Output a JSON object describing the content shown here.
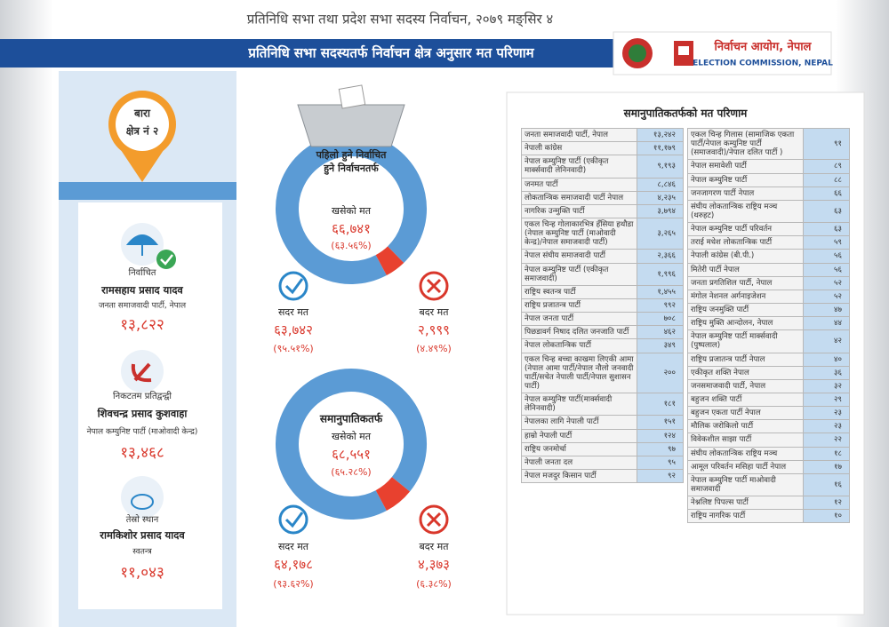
{
  "header": {
    "top_line": "प्रतिनिधि सभा तथा प्रदेश सभा सदस्य निर्वाचन, २०७९ मङ्सिर ४",
    "title": "प्रतिनिधि सभा सदस्यतर्फ निर्वाचन क्षेत्र अनुसार मत परिणाम",
    "logo_text": "निर्वाचन आयोग, नेपाल",
    "logo_subtext": "ELECTION COMMISSION, NEPAL"
  },
  "constituency": {
    "district": "बारा",
    "number": "क्षेत्र नं २"
  },
  "candidates": [
    {
      "status": "निर्वाचित",
      "name": "रामसहाय प्रसाद यादव",
      "party": "जनता समाजवादी पार्टी, नेपाल",
      "votes": "१३,८२२"
    },
    {
      "status": "निकटतम प्रतिद्वन्द्वी",
      "name": "शिवचन्द्र प्रसाद कुशवाहा",
      "party": "नेपाल कम्युनिष्ट पार्टी (माओवादी केन्द्र)",
      "votes": "१३,४६८"
    },
    {
      "status": "तेस्रो स्थान",
      "name": "रामकिशोर प्रसाद यादव",
      "party": "स्वतन्त्र",
      "votes": "११,०४३"
    }
  ],
  "fpp": {
    "heading_lines": [
      "पहिलो हुने निर्वाचित",
      "हुने निर्वाचनतर्फ"
    ],
    "cast_label": "खसेको मत",
    "cast_votes": "६६,७४१",
    "cast_percent": "(६३.५६%)",
    "valid_label": "सदर मत",
    "valid_votes": "६३,७४२",
    "valid_percent": "(९५.५१%)",
    "invalid_label": "बदर मत",
    "invalid_votes": "२,९९९",
    "invalid_percent": "(४.४९%)",
    "valid_share": 95.51,
    "invalid_share": 4.49
  },
  "pr": {
    "heading": "समानुपातिकतर्फ",
    "cast_label": "खसेको मत",
    "cast_votes": "६८,५५१",
    "cast_percent": "(६५.२८%)",
    "valid_label": "सदर मत",
    "valid_votes": "६४,१७८",
    "valid_percent": "(९३.६२%)",
    "invalid_label": "बदर मत",
    "invalid_votes": "४,३७३",
    "invalid_percent": "(६.३८%)",
    "valid_share": 93.62,
    "invalid_share": 6.38
  },
  "table": {
    "title": "समानुपातिकतर्फको मत परिणाम",
    "left": [
      [
        "जनता समाजवादी पार्टी, नेपाल",
        "१३,२४२"
      ],
      [
        "नेपाली कांग्रेस",
        "११,१७९"
      ],
      [
        "नेपाल कम्युनिष्ट पार्टी (एकीकृत मार्क्सवादी लेनिनवादी)",
        "९,१९३"
      ],
      [
        "जनमत पार्टी",
        "८,८४६"
      ],
      [
        "लोकतान्त्रिक समाजवादी पार्टी नेपाल",
        "४,२३५"
      ],
      [
        "नागरिक उन्मुक्ति पार्टी",
        "३,७९४"
      ],
      [
        "एकल चिन्ह गोलाकारभित्र हँसिया हथौडा (नेपाल कम्युनिष्ट पार्टी (माओवादी केन्द्र)/नेपाल समाजवादी पार्टी)",
        "३,२६५"
      ],
      [
        "नेपाल संघीय समाजवादी पार्टी",
        "२,३६६"
      ],
      [
        "नेपाल कम्युनिष्ट पार्टी (एकीकृत समाजवादी)",
        "१,९९६"
      ],
      [
        "राष्ट्रिय स्वतन्त्र पार्टी",
        "१,४५५"
      ],
      [
        "राष्ट्रिय प्रजातन्त्र पार्टी",
        "९९२"
      ],
      [
        "नेपाल जनता पार्टी",
        "७०८"
      ],
      [
        "पिछडावर्ग निषाद दलित जनजाति पार्टी",
        "४६२"
      ],
      [
        "नेपाल लोकतान्त्रिक पार्टी",
        "३४९"
      ],
      [
        "एकल चिन्ह बच्चा काखमा लिएकी आमा (नेपाल आमा पार्टी/नेपाल नौलो जनवादी पार्टी/सचेत नेपाली पार्टी/नेपाल सुशासन पार्टी)",
        "२००"
      ],
      [
        "नेपाल कम्युनिष्ट पार्टी(मार्क्सवादी लेनिनवादी)",
        "१८१"
      ],
      [
        "नेपालका लागि नेपाली पार्टी",
        "१५१"
      ],
      [
        "हाम्रो नेपाली पार्टी",
        "१२४"
      ],
      [
        "राष्ट्रिय जनमोर्चा",
        "९७"
      ],
      [
        "नेपाली जनता दल",
        "९५"
      ],
      [
        "नेपाल मजदुर किसान पार्टी",
        "९२"
      ]
    ],
    "right": [
      [
        "एकल चिन्ह गिलास (सामाजिक एकता पार्टी/नेपाल कम्युनिष्ट पार्टी (समाजवादी)/नेपाल दलित पार्टी )",
        "९१"
      ],
      [
        "नेपाल समावेशी पार्टी",
        "८९"
      ],
      [
        "नेपाल कम्युनिष्ट पार्टी",
        "८८"
      ],
      [
        "जनजागरण पार्टी नेपाल",
        "६६"
      ],
      [
        "संघीय लोकतान्त्रिक राष्ट्रिय मञ्च (थरुहट)",
        "६३"
      ],
      [
        "नेपाल कम्युनिष्ट पार्टी परिवर्तन",
        "६३"
      ],
      [
        "तराई मधेश लोकतान्त्रिक पार्टी",
        "५९"
      ],
      [
        "नेपाली कांग्रेस (बी.पी.)",
        "५६"
      ],
      [
        "मितेरी पार्टी नेपाल",
        "५६"
      ],
      [
        "जनता प्रगतिशिल पार्टी, नेपाल",
        "५२"
      ],
      [
        "मंगोल नेशनल अर्गनाइजेशन",
        "५२"
      ],
      [
        "राष्ट्रिय जनमुक्ति पार्टी",
        "४७"
      ],
      [
        "राष्ट्रिय मुक्ति आन्दोलन, नेपाल",
        "४४"
      ],
      [
        "नेपाल कम्युनिष्ट पार्टी मार्क्सवादी (पुष्पलाल)",
        "४२"
      ],
      [
        "राष्ट्रिय प्रजातन्त्र पार्टी नेपाल",
        "४०"
      ],
      [
        "एकीकृत शक्ति नेपाल",
        "३६"
      ],
      [
        "जनसमाजवादी पार्टी, नेपाल",
        "३२"
      ],
      [
        "बहुजन शक्ति पार्टी",
        "२९"
      ],
      [
        "बहुजन एकता पार्टी नेपाल",
        "२३"
      ],
      [
        "मौलिक जरोकिलो पार्टी",
        "२३"
      ],
      [
        "विवेकशील साझा पार्टी",
        "२२"
      ],
      [
        "संघीय लोकतान्त्रिक राष्ट्रिय मञ्च",
        "१८"
      ],
      [
        "आमूल परिवर्तन मसिहा पार्टी नेपाल",
        "१७"
      ],
      [
        "नेपाल कम्युनिष्ट पार्टी माओवादी समाजवादी",
        "१६"
      ],
      [
        "नेश्नलिष्ट पिपल्स पार्टी",
        "१२"
      ],
      [
        "राष्ट्रिय नागरिक पार्टी",
        "१०"
      ]
    ]
  }
}
